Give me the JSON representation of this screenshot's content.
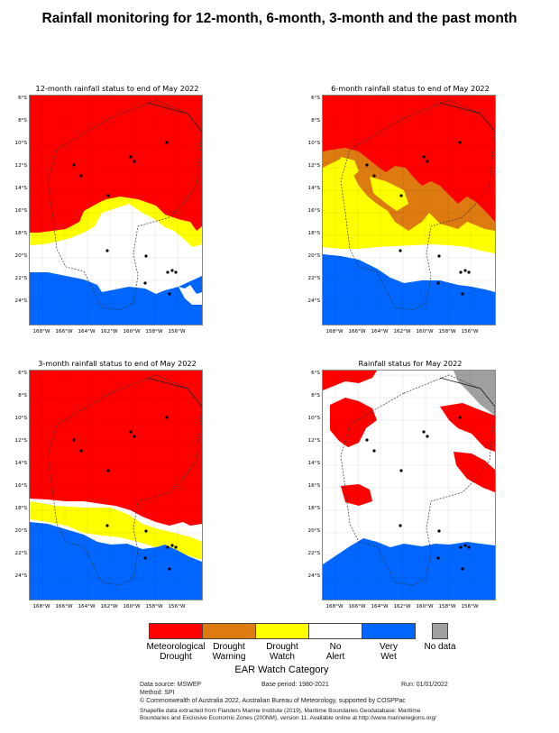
{
  "title": "Rainfall monitoring for 12-month, 6-month, 3-month and the past month",
  "panels": [
    {
      "title": "12-month rainfall status to end of May 2022"
    },
    {
      "title": "6-month rainfall status to end of May 2022"
    },
    {
      "title": "3-month rainfall status to end of May 2022"
    },
    {
      "title": "Rainfall status for May 2022"
    }
  ],
  "axes": {
    "lat_labels": [
      "6°S",
      "8°S",
      "10°S",
      "12°S",
      "14°S",
      "16°S",
      "18°S",
      "20°S",
      "22°S",
      "24°S"
    ],
    "lon_labels": [
      "168°W",
      "166°W",
      "164°W",
      "162°W",
      "160°W",
      "158°W",
      "156°W"
    ],
    "lat_range": [
      -25.5,
      -5.3
    ],
    "lon_range": [
      169.8,
      154.6
    ]
  },
  "legend": {
    "title": "EAR Watch Category",
    "items": [
      {
        "label": "Meteorological Drought",
        "line1": "Meteorological",
        "line2": "Drought",
        "color": "#ff0000"
      },
      {
        "label": "Drought Warning",
        "line1": "Drought",
        "line2": "Warning",
        "color": "#dd7a10"
      },
      {
        "label": "Drought Watch",
        "line1": "Drought",
        "line2": "Watch",
        "color": "#ffff00"
      },
      {
        "label": "No Alert",
        "line1": "No",
        "line2": "Alert",
        "color": "#ffffff"
      },
      {
        "label": "Very Wet",
        "line1": "Very",
        "line2": "Wet",
        "color": "#0066ff"
      },
      {
        "label": "No data",
        "line1": "No data",
        "line2": "",
        "color": "#a0a0a0"
      }
    ]
  },
  "footer": {
    "data_source": "Data source: MSWEP",
    "base_period": "Base period: 1980-2021",
    "run": "Run: 01/01/2022",
    "method": "Method: SPI",
    "copyright": "© Commonwealth of Australia 2022, Australian Bureau of Meteorology, supported by COSPPac",
    "shapefile_1": "Shapefile data extracted from Flanders Marine Institute (2019), Maritime Boundaries Geodatabase: Maritime",
    "shapefile_2": "Boundaries and Exclusive Economic Zones (200NM), version 11. Available online at http://www.marineregions.org/"
  }
}
